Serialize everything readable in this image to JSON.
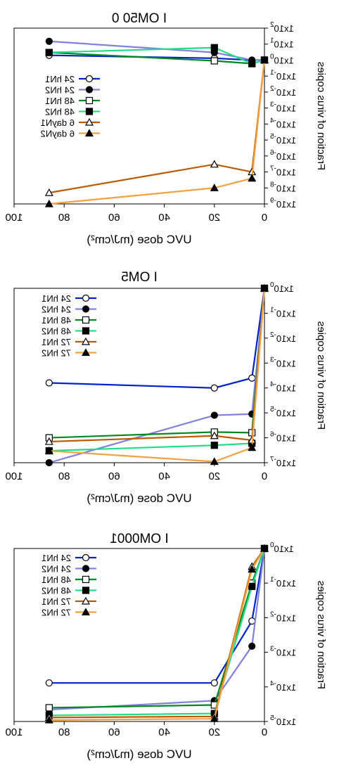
{
  "page": {
    "mirrored": true
  },
  "chart_data": [
    {
      "type": "line",
      "title": "I OM50 0",
      "xlabel": "UVC dose (mJ/cm²)",
      "ylabel": "Fraction of virus copies",
      "yscale": "log",
      "xlim": [
        0,
        100
      ],
      "ylim": [
        1e-09,
        100
      ],
      "xticks": [
        0,
        20,
        40,
        60,
        80,
        100
      ],
      "yticks": [
        1e-09,
        1e-08,
        1e-07,
        1e-06,
        1e-05,
        0.0001,
        0.001,
        0.01,
        0.1,
        1,
        10,
        100
      ],
      "ytick_exponents": [
        "-9",
        "-8",
        "-7",
        "-6",
        "-5",
        "-4",
        "-3",
        "-2",
        "-1",
        "0",
        "1",
        "2"
      ],
      "ytick_base": "1x10",
      "legend": "right-middle",
      "series": [
        {
          "name": "24 hN1",
          "color": "#0022cc",
          "marker": "circle-open",
          "x": [
            0,
            5,
            20,
            86
          ],
          "y": [
            1,
            1,
            1.3,
            2
          ]
        },
        {
          "name": "24 hN2",
          "color": "#8080e0",
          "marker": "circle-filled",
          "x": [
            0,
            5,
            20,
            86
          ],
          "y": [
            1,
            1,
            3,
            15
          ]
        },
        {
          "name": "48 hN1",
          "color": "#008822",
          "marker": "square-open",
          "x": [
            0,
            5,
            20,
            86
          ],
          "y": [
            1,
            0.6,
            0.9,
            3
          ]
        },
        {
          "name": "48 hN2",
          "color": "#22dd88",
          "marker": "square-filled",
          "x": [
            0,
            5,
            20,
            86
          ],
          "y": [
            1,
            0.6,
            6,
            3
          ]
        },
        {
          "name": "6 dayN1",
          "color": "#bb5a00",
          "marker": "triangle-open",
          "x": [
            0,
            5,
            20,
            86
          ],
          "y": [
            1,
            1e-07,
            3e-07,
            5e-09
          ]
        },
        {
          "name": "6 dayN2",
          "color": "#f5a040",
          "marker": "triangle-filled",
          "x": [
            0,
            5,
            20,
            86
          ],
          "y": [
            1,
            4e-08,
            1e-08,
            1e-09
          ]
        }
      ]
    },
    {
      "type": "line",
      "title": "I OM5",
      "xlabel": "UVC dose (mJ/cm²)",
      "ylabel": "Fraction of virus copies",
      "yscale": "log",
      "xlim": [
        0,
        100
      ],
      "ylim": [
        1e-07,
        1
      ],
      "xticks": [
        0,
        20,
        40,
        60,
        80,
        100
      ],
      "yticks": [
        1e-07,
        1e-06,
        1e-05,
        0.0001,
        0.001,
        0.01,
        0.1,
        1
      ],
      "ytick_exponents": [
        "-7",
        "-6",
        "-5",
        "-4",
        "-3",
        "-2",
        "-1",
        "0"
      ],
      "ytick_base": "1x10",
      "legend": "top-right",
      "series": [
        {
          "name": "24 hN1",
          "color": "#0022cc",
          "marker": "circle-open",
          "x": [
            0,
            5,
            20,
            86
          ],
          "y": [
            1,
            0.00025,
            0.0001,
            0.00016
          ]
        },
        {
          "name": "24 hN2",
          "color": "#8080e0",
          "marker": "circle-filled",
          "x": [
            0,
            5,
            20,
            86
          ],
          "y": [
            1,
            9e-06,
            8e-06,
            1e-07
          ]
        },
        {
          "name": "48 hN1",
          "color": "#008822",
          "marker": "square-open",
          "x": [
            0,
            5,
            20,
            86
          ],
          "y": [
            1,
            1.6e-06,
            1.7e-06,
            1e-06
          ]
        },
        {
          "name": "48 hN2",
          "color": "#22dd88",
          "marker": "square-filled",
          "x": [
            0,
            5,
            20,
            86
          ],
          "y": [
            1,
            6e-07,
            5e-07,
            3e-07
          ]
        },
        {
          "name": "72 hN1",
          "color": "#bb5a00",
          "marker": "triangle-open",
          "x": [
            0,
            5,
            20,
            86
          ],
          "y": [
            1,
            8e-07,
            1.2e-06,
            7e-07
          ]
        },
        {
          "name": "72 hN2",
          "color": "#f5a040",
          "marker": "triangle-filled",
          "x": [
            0,
            5,
            20,
            86
          ],
          "y": [
            1,
            4e-07,
            1.1e-07,
            3e-07
          ]
        }
      ]
    },
    {
      "type": "line",
      "title": "I OM0001",
      "xlabel": "UVC dose (mJ/cm²)",
      "ylabel": "Fraction of virus copies",
      "yscale": "log",
      "xlim": [
        0,
        100
      ],
      "ylim": [
        1e-05,
        1
      ],
      "xticks": [
        0,
        20,
        40,
        60,
        80,
        100
      ],
      "yticks": [
        1e-05,
        0.0001,
        0.001,
        0.01,
        0.1,
        1
      ],
      "ytick_exponents": [
        "-5",
        "-4",
        "-3",
        "-2",
        "-1",
        "0"
      ],
      "ytick_base": "1x10",
      "legend": "top-right",
      "series": [
        {
          "name": "24 hN1",
          "color": "#0022cc",
          "marker": "circle-open",
          "x": [
            0,
            5,
            20,
            86
          ],
          "y": [
            1,
            0.008,
            0.00013,
            0.00013
          ]
        },
        {
          "name": "24 hN2",
          "color": "#8080e0",
          "marker": "circle-filled",
          "x": [
            0,
            5,
            20,
            86
          ],
          "y": [
            1,
            0.0015,
            4e-05,
            2.2e-05
          ]
        },
        {
          "name": "48 hN1",
          "color": "#008822",
          "marker": "square-open",
          "x": [
            0,
            5,
            20,
            86
          ],
          "y": [
            1,
            0.1,
            3e-05,
            2.5e-05
          ]
        },
        {
          "name": "48 hN2",
          "color": "#22dd88",
          "marker": "square-filled",
          "x": [
            0,
            5,
            20,
            86
          ],
          "y": [
            1,
            0.08,
            1.7e-05,
            1.5e-05
          ]
        },
        {
          "name": "72 hN1",
          "color": "#bb5a00",
          "marker": "triangle-open",
          "x": [
            0,
            5,
            20,
            86
          ],
          "y": [
            1,
            0.3,
            1.4e-05,
            1.3e-05
          ]
        },
        {
          "name": "72 hN2",
          "color": "#f5a040",
          "marker": "triangle-filled",
          "x": [
            0,
            5,
            20,
            86
          ],
          "y": [
            1,
            0.25,
            1.2e-05,
            1.1e-05
          ]
        }
      ]
    }
  ]
}
